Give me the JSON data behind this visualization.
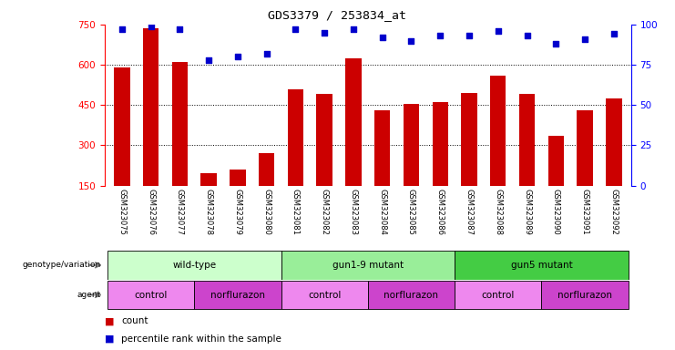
{
  "title": "GDS3379 / 253834_at",
  "samples": [
    "GSM323075",
    "GSM323076",
    "GSM323077",
    "GSM323078",
    "GSM323079",
    "GSM323080",
    "GSM323081",
    "GSM323082",
    "GSM323083",
    "GSM323084",
    "GSM323085",
    "GSM323086",
    "GSM323087",
    "GSM323088",
    "GSM323089",
    "GSM323090",
    "GSM323091",
    "GSM323092"
  ],
  "counts": [
    590,
    735,
    610,
    195,
    210,
    270,
    510,
    490,
    625,
    430,
    455,
    460,
    495,
    560,
    490,
    335,
    430,
    475
  ],
  "percentile_ranks": [
    97,
    99,
    97,
    78,
    80,
    82,
    97,
    95,
    97,
    92,
    90,
    93,
    93,
    96,
    93,
    88,
    91,
    94
  ],
  "bar_color": "#CC0000",
  "dot_color": "#0000CC",
  "ylim_left": [
    150,
    750
  ],
  "yticks_left": [
    150,
    300,
    450,
    600,
    750
  ],
  "ylim_right": [
    0,
    100
  ],
  "yticks_right": [
    0,
    25,
    50,
    75,
    100
  ],
  "ygrid_lines": [
    300,
    450,
    600
  ],
  "genotype_groups": [
    {
      "label": "wild-type",
      "start": 0,
      "end": 5,
      "color": "#CCFFCC"
    },
    {
      "label": "gun1-9 mutant",
      "start": 6,
      "end": 11,
      "color": "#99EE99"
    },
    {
      "label": "gun5 mutant",
      "start": 12,
      "end": 17,
      "color": "#44CC44"
    }
  ],
  "agent_groups": [
    {
      "label": "control",
      "start": 0,
      "end": 2,
      "color": "#EE88EE"
    },
    {
      "label": "norflurazon",
      "start": 3,
      "end": 5,
      "color": "#CC44CC"
    },
    {
      "label": "control",
      "start": 6,
      "end": 8,
      "color": "#EE88EE"
    },
    {
      "label": "norflurazon",
      "start": 9,
      "end": 11,
      "color": "#CC44CC"
    },
    {
      "label": "control",
      "start": 12,
      "end": 14,
      "color": "#EE88EE"
    },
    {
      "label": "norflurazon",
      "start": 15,
      "end": 17,
      "color": "#CC44CC"
    }
  ],
  "xtick_bg": "#CCCCCC",
  "legend_count_color": "#CC0000",
  "legend_dot_color": "#0000CC",
  "background_color": "#FFFFFF"
}
